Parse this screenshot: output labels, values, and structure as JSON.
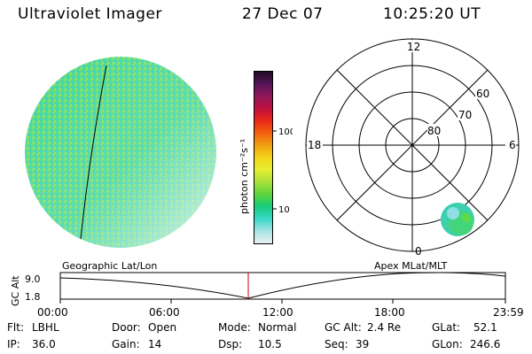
{
  "header": {
    "instrument": "Ultraviolet Imager",
    "date": "27 Dec 07",
    "time": "10:25:20 UT"
  },
  "colorbar": {
    "label": "photon cm⁻²s⁻¹",
    "ticks": [
      "100",
      "10"
    ],
    "colors": [
      "#e8f2f2",
      "#a8e2e2",
      "#38d8c8",
      "#18cc7c",
      "#5cd43c",
      "#a8e03c",
      "#e6ee30",
      "#f2d418",
      "#f2a012",
      "#f26010",
      "#e82818",
      "#c01040",
      "#901858",
      "#541458",
      "#200c24"
    ]
  },
  "polar": {
    "hour_labels": [
      "12",
      "18",
      "6",
      "0"
    ],
    "lat_labels": [
      "60",
      "70",
      "80"
    ]
  },
  "timeline": {
    "left_title": "Geographic Lat/Lon",
    "right_title": "Apex MLat/MLT",
    "y_axis_label": "GC Alt",
    "y_ticks": [
      "9.0",
      "1.8"
    ],
    "x_ticks": [
      "00:00",
      "06:00",
      "12:00",
      "18:00",
      "23:59"
    ],
    "current_time_color": "#cc0000"
  },
  "info": {
    "flt": {
      "label": "Flt:",
      "value": "LBHL"
    },
    "ip": {
      "label": "IP:",
      "value": "36.0"
    },
    "door": {
      "label": "Door:",
      "value": "Open"
    },
    "gain": {
      "label": "Gain:",
      "value": "14"
    },
    "mode": {
      "label": "Mode:",
      "value": "Normal"
    },
    "dsp": {
      "label": "Dsp:",
      "value": "10.5"
    },
    "gcalt": {
      "label": "GC Alt:",
      "value": "2.4 Re"
    },
    "seq": {
      "label": "Seq:",
      "value": "39"
    },
    "glat": {
      "label": "GLat:",
      "value": "52.1"
    },
    "glon": {
      "label": "GLon:",
      "value": "246.6"
    }
  }
}
